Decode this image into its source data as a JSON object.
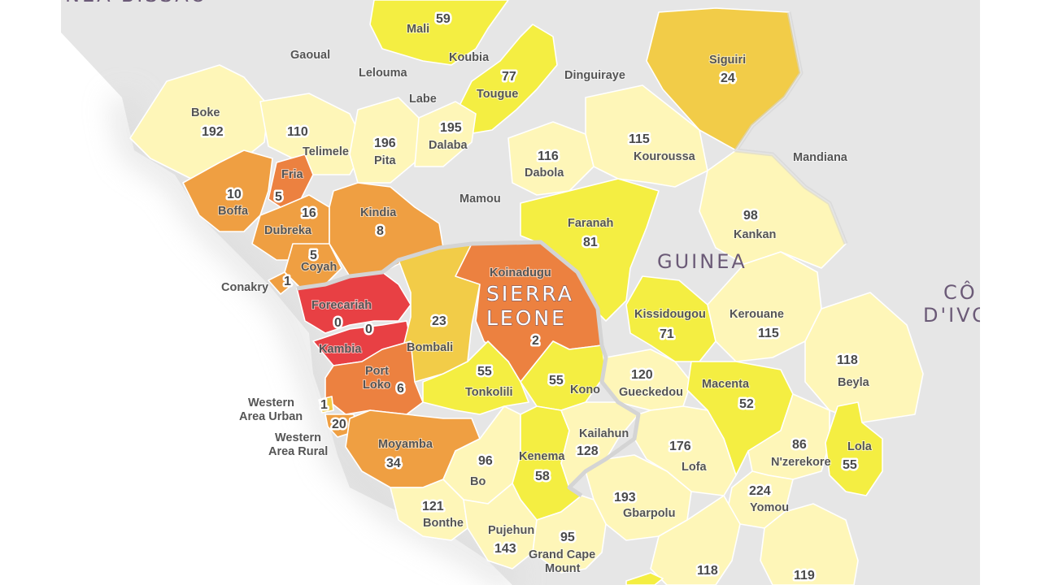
{
  "colors": {
    "background_land": "#e6e6e6",
    "sea": "#ffffff",
    "scale": [
      "#fffbd0",
      "#fef6b8",
      "#f4ee42",
      "#f2cc48",
      "#ef9f42",
      "#ec8140",
      "#e84044"
    ]
  },
  "countries": {
    "guinea_bissau_partial": "NEA-BISSAU",
    "guinea": "GUINEA",
    "sierra_leone_line1": "SIERRA",
    "sierra_leone_line2": "LEONE",
    "cote_divoire_line1": "CÔ",
    "cote_divoire_line2": "D'IVO"
  },
  "regions": {
    "gaoual": {
      "name": "Gaoual"
    },
    "mali": {
      "name": "Mali",
      "value": "59"
    },
    "koubia": {
      "name": "Koubia"
    },
    "lelouma": {
      "name": "Lelouma"
    },
    "labe": {
      "name": "Labe"
    },
    "dinguiraye": {
      "name": "Dinguiraye"
    },
    "tougue": {
      "name": "Tougue",
      "value": "77"
    },
    "siguiri": {
      "name": "Siguiri",
      "value": "24"
    },
    "boke": {
      "name": "Boke",
      "value": "192"
    },
    "telimele": {
      "name": "Telimele",
      "value": "110"
    },
    "pita": {
      "name": "Pita",
      "value": "196"
    },
    "dalaba": {
      "name": "Dalaba",
      "value": "195"
    },
    "dabola": {
      "name": "Dabola",
      "value": "116"
    },
    "kouroussa": {
      "name": "Kouroussa",
      "value": "115"
    },
    "mandiana": {
      "name": "Mandiana"
    },
    "fria": {
      "name": "Fria",
      "value": "5"
    },
    "boffa": {
      "name": "Boffa",
      "value": "10"
    },
    "dubreka": {
      "name": "Dubreka",
      "value": "16"
    },
    "kindia": {
      "name": "Kindia",
      "value": "8"
    },
    "mamou": {
      "name": "Mamou"
    },
    "faranah": {
      "name": "Faranah",
      "value": "81"
    },
    "kankan": {
      "name": "Kankan",
      "value": "98"
    },
    "coyah": {
      "name": "Coyah",
      "value": "5"
    },
    "conakry": {
      "name": "Conakry",
      "value": "1"
    },
    "forecariah": {
      "name": "Forecariah",
      "value": "0"
    },
    "kambia": {
      "name": "Kambia",
      "value": "0"
    },
    "koinadugu": {
      "name": "Koinadugu",
      "value": "2"
    },
    "bombali": {
      "name": "Bombali",
      "value": "23"
    },
    "kissidougou": {
      "name": "Kissidougou",
      "value": "71"
    },
    "kerouane": {
      "name": "Kerouane",
      "value": "115"
    },
    "beyla": {
      "name": "Beyla",
      "value": "118"
    },
    "port_loko": {
      "name_line1": "Port",
      "name_line2": "Loko",
      "value": "6"
    },
    "tonkolili": {
      "name": "Tonkolili",
      "value": "55"
    },
    "kono": {
      "name": "Kono",
      "value": "55"
    },
    "gueckedou": {
      "name": "Gueckedou",
      "value": "120"
    },
    "macenta": {
      "name": "Macenta",
      "value": "52"
    },
    "western_urban": {
      "name_line1": "Western",
      "name_line2": "Area Urban",
      "value": "1"
    },
    "western_rural": {
      "name_line1": "Western",
      "name_line2": "Area Rural",
      "value": "20"
    },
    "moyamba": {
      "name": "Moyamba",
      "value": "34"
    },
    "bo": {
      "name": "Bo",
      "value": "96"
    },
    "kenema": {
      "name": "Kenema",
      "value": "58"
    },
    "kailahun": {
      "name": "Kailahun",
      "value": "128"
    },
    "lofa": {
      "name": "Lofa",
      "value": "176"
    },
    "nzerekore": {
      "name": "N'zerekore",
      "value": "86"
    },
    "lola": {
      "name": "Lola",
      "value": "55"
    },
    "yomou": {
      "name": "Yomou",
      "value": "224"
    },
    "bonthe": {
      "name": "Bonthe",
      "value": "121"
    },
    "gbarpolu": {
      "name": "Gbarpolu",
      "value": "193"
    },
    "pujehun": {
      "name": "Pujehun",
      "value": "143"
    },
    "grand_cape_mount": {
      "name_line1": "Grand Cape",
      "name_line2": "Mount",
      "value": "95"
    },
    "bong": {
      "value": "118"
    },
    "nimba": {
      "value": "119"
    }
  }
}
